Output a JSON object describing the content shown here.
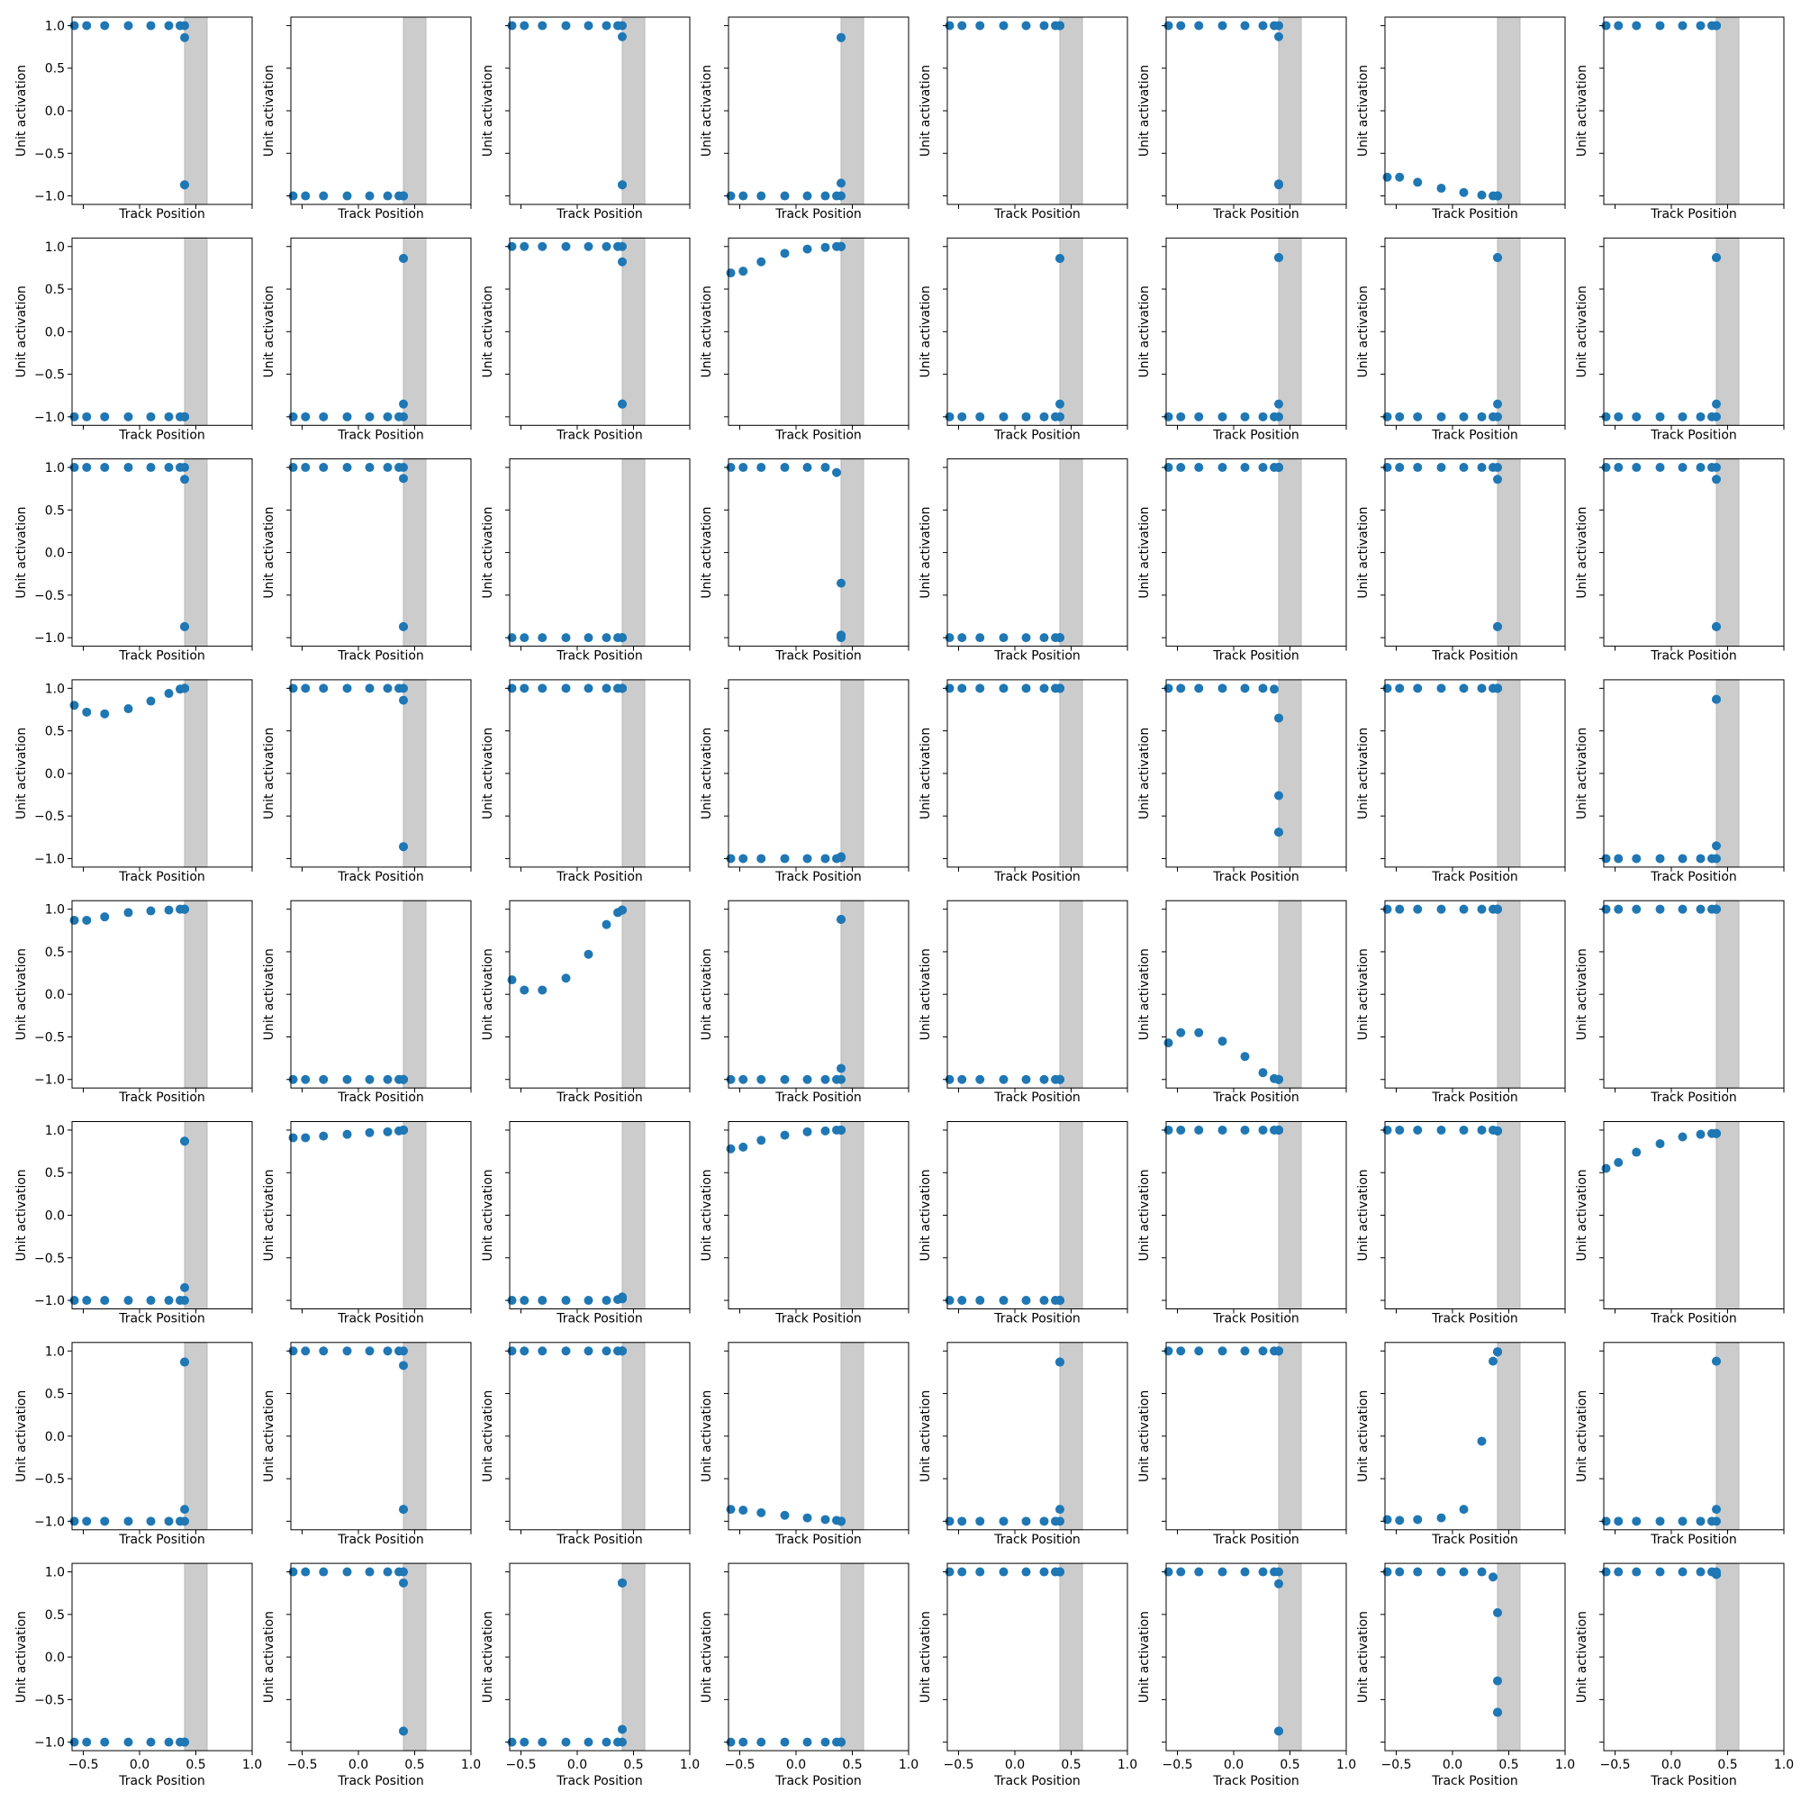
{
  "chart_data": {
    "type": "scatter",
    "title": "",
    "layout": {
      "rows": 8,
      "cols": 8,
      "sharex": true,
      "sharey": true
    },
    "xlabel": "Track Position",
    "ylabel": "Unit activation",
    "xlim": [
      -0.6,
      1.0
    ],
    "ylim": [
      -1.1,
      1.1
    ],
    "x_ticks": [
      -0.5,
      0.0,
      0.5,
      1.0
    ],
    "x_tick_labels": [
      "−0.5",
      "0.0",
      "0.5",
      "1.0"
    ],
    "y_ticks": [
      -1.0,
      -0.5,
      0.0,
      0.5,
      1.0
    ],
    "y_tick_labels": [
      "−1.0",
      "−0.5",
      "0.0",
      "0.5",
      "1.0"
    ],
    "shaded_region": {
      "x_range": [
        0.4,
        0.6
      ],
      "color": "#cccccc"
    },
    "marker_color": "#1f77b4",
    "grid": false,
    "x": [
      -0.58,
      -0.47,
      -0.31,
      -0.1,
      0.1,
      0.26,
      0.36,
      0.4,
      0.4,
      0.4,
      0.4
    ],
    "panels": [
      [
        1,
        1,
        1,
        1,
        1,
        1,
        1,
        1,
        0.86,
        -0.87,
        -0.87
      ],
      [
        -1,
        -1,
        -1,
        -1,
        -1,
        -1,
        -1,
        -1,
        -1,
        -1,
        -1
      ],
      [
        1,
        1,
        1,
        1,
        1,
        1,
        1,
        1,
        0.87,
        -0.87,
        -0.87
      ],
      [
        -1,
        -1,
        -1,
        -1,
        -1,
        -1,
        -1,
        -0.85,
        0.86,
        -1,
        0.86
      ],
      [
        1,
        1,
        1,
        1,
        1,
        1,
        1,
        1,
        1,
        1,
        1
      ],
      [
        1,
        1,
        1,
        1,
        1,
        1,
        1,
        1,
        0.87,
        -0.86,
        -0.87
      ],
      [
        -0.78,
        -0.78,
        -0.84,
        -0.91,
        -0.96,
        -0.99,
        -1,
        -1,
        -1,
        -1,
        -1
      ],
      [
        1,
        1,
        1,
        1,
        1,
        1,
        1,
        1,
        1,
        1,
        1
      ],
      [
        -1,
        -1,
        -1,
        -1,
        -1,
        -1,
        -1,
        -1,
        -1,
        -1,
        -1
      ],
      [
        -1,
        -1,
        -1,
        -1,
        -1,
        -1,
        -1,
        -0.85,
        0.86,
        0.86,
        -1
      ],
      [
        1,
        1,
        1,
        1,
        1,
        1,
        1,
        1,
        0.82,
        -0.85,
        -0.85
      ],
      [
        0.69,
        0.71,
        0.82,
        0.92,
        0.97,
        0.99,
        1,
        1,
        1,
        1,
        1
      ],
      [
        -1,
        -1,
        -1,
        -1,
        -1,
        -1,
        -1,
        -0.85,
        0.86,
        0.86,
        -1
      ],
      [
        -1,
        -1,
        -1,
        -1,
        -1,
        -1,
        -1,
        -0.85,
        0.87,
        0.87,
        -1
      ],
      [
        -1,
        -1,
        -1,
        -1,
        -1,
        -1,
        -1,
        -0.85,
        0.87,
        0.87,
        -1
      ],
      [
        -1,
        -1,
        -1,
        -1,
        -1,
        -1,
        -1,
        -0.85,
        0.87,
        0.87,
        -1
      ],
      [
        1,
        1,
        1,
        1,
        1,
        1,
        1,
        1,
        0.86,
        -0.87,
        -0.87
      ],
      [
        1,
        1,
        1,
        1,
        1,
        1,
        1,
        1,
        0.87,
        -0.87,
        -0.87
      ],
      [
        -1,
        -1,
        -1,
        -1,
        -1,
        -1,
        -1,
        -1,
        -1,
        -1,
        -1
      ],
      [
        1,
        1,
        1,
        1,
        1,
        1,
        0.94,
        -0.36,
        -0.97,
        -0.99,
        -1
      ],
      [
        -1,
        -1,
        -1,
        -1,
        -1,
        -1,
        -1,
        -1,
        -1,
        -1,
        -1
      ],
      [
        1,
        1,
        1,
        1,
        1,
        1,
        1,
        1,
        1,
        1,
        1
      ],
      [
        1,
        1,
        1,
        1,
        1,
        1,
        1,
        1,
        0.86,
        -0.87,
        -0.87
      ],
      [
        1,
        1,
        1,
        1,
        1,
        1,
        1,
        1,
        0.86,
        -0.87,
        -0.87
      ],
      [
        0.8,
        0.72,
        0.7,
        0.76,
        0.85,
        0.94,
        0.99,
        1,
        1,
        1,
        1
      ],
      [
        1,
        1,
        1,
        1,
        1,
        1,
        1,
        1,
        0.86,
        -0.86,
        -0.86
      ],
      [
        1,
        1,
        1,
        1,
        1,
        1,
        1,
        1,
        1,
        1,
        1
      ],
      [
        -1,
        -1,
        -1,
        -1,
        -1,
        -1,
        -1,
        -0.99,
        -0.98,
        -0.98,
        -0.98
      ],
      [
        1,
        1,
        1,
        1,
        1,
        1,
        1,
        1,
        1,
        1,
        1
      ],
      [
        1,
        1,
        1,
        1,
        1,
        1,
        0.99,
        0.65,
        -0.26,
        -0.69,
        -0.69
      ],
      [
        1,
        1,
        1,
        1,
        1,
        1,
        1,
        1,
        1,
        1,
        1
      ],
      [
        -1,
        -1,
        -1,
        -1,
        -1,
        -1,
        -1,
        -0.85,
        0.87,
        0.87,
        -1
      ],
      [
        0.87,
        0.87,
        0.91,
        0.96,
        0.98,
        0.99,
        1,
        1,
        1,
        1,
        1
      ],
      [
        -1,
        -1,
        -1,
        -1,
        -1,
        -1,
        -1,
        -1,
        -1,
        -1,
        -1
      ],
      [
        0.17,
        0.05,
        0.05,
        0.19,
        0.47,
        0.82,
        0.96,
        0.99,
        0.99,
        0.99,
        0.99
      ],
      [
        -1,
        -1,
        -1,
        -1,
        -1,
        -1,
        -1,
        -0.87,
        0.88,
        0.88,
        -1
      ],
      [
        -1,
        -1,
        -1,
        -1,
        -1,
        -1,
        -1,
        -1,
        -1,
        -1,
        -1
      ],
      [
        -0.57,
        -0.45,
        -0.45,
        -0.55,
        -0.73,
        -0.92,
        -0.99,
        -1,
        -1,
        -1,
        -1
      ],
      [
        1,
        1,
        1,
        1,
        1,
        1,
        1,
        1,
        1,
        1,
        1
      ],
      [
        1,
        1,
        1,
        1,
        1,
        1,
        1,
        1,
        1,
        1,
        1
      ],
      [
        -1,
        -1,
        -1,
        -1,
        -1,
        -1,
        -1,
        -0.85,
        0.87,
        0.87,
        -1
      ],
      [
        0.91,
        0.91,
        0.93,
        0.95,
        0.97,
        0.98,
        0.99,
        1,
        1,
        1,
        1
      ],
      [
        -1,
        -1,
        -1,
        -1,
        -1,
        -1,
        -0.99,
        -0.98,
        -0.96,
        -0.98,
        -0.98
      ],
      [
        0.78,
        0.8,
        0.88,
        0.94,
        0.98,
        0.99,
        1,
        1,
        1,
        1,
        1
      ],
      [
        -1,
        -1,
        -1,
        -1,
        -1,
        -1,
        -1,
        -1,
        -1,
        -1,
        -1
      ],
      [
        1,
        1,
        1,
        1,
        1,
        1,
        1,
        1,
        1,
        1,
        1
      ],
      [
        1,
        1,
        1,
        1,
        1,
        1,
        1,
        0.99,
        0.99,
        0.99,
        0.99
      ],
      [
        0.55,
        0.62,
        0.74,
        0.84,
        0.92,
        0.95,
        0.96,
        0.96,
        0.96,
        0.96,
        0.96
      ],
      [
        -1,
        -1,
        -1,
        -1,
        -1,
        -1,
        -1,
        -0.86,
        0.87,
        0.87,
        -1
      ],
      [
        1,
        1,
        1,
        1,
        1,
        1,
        1,
        1,
        0.83,
        -0.86,
        -0.86
      ],
      [
        1,
        1,
        1,
        1,
        1,
        1,
        1,
        1,
        1,
        1,
        1
      ],
      [
        -0.86,
        -0.87,
        -0.9,
        -0.93,
        -0.96,
        -0.98,
        -0.99,
        -1,
        -1,
        -1,
        -1
      ],
      [
        -1,
        -1,
        -1,
        -1,
        -1,
        -1,
        -1,
        -0.86,
        0.87,
        0.87,
        -1
      ],
      [
        1,
        1,
        1,
        1,
        1,
        1,
        1,
        1,
        1,
        1,
        1
      ],
      [
        -0.98,
        -0.99,
        -0.98,
        -0.96,
        -0.86,
        -0.06,
        0.88,
        0.99,
        0.99,
        0.99,
        0.99
      ],
      [
        -1,
        -1,
        -1,
        -1,
        -1,
        -1,
        -1,
        -0.86,
        0.88,
        0.88,
        -1
      ],
      [
        -1,
        -1,
        -1,
        -1,
        -1,
        -1,
        -1,
        -1,
        -1,
        -1,
        -1
      ],
      [
        1,
        1,
        1,
        1,
        1,
        1,
        1,
        1,
        0.87,
        -0.87,
        -0.87
      ],
      [
        -1,
        -1,
        -1,
        -1,
        -1,
        -1,
        -1,
        -0.85,
        0.87,
        0.87,
        -1
      ],
      [
        -1,
        -1,
        -1,
        -1,
        -1,
        -1,
        -1,
        -1,
        -1,
        -1,
        -1
      ],
      [
        1,
        1,
        1,
        1,
        1,
        1,
        1,
        1,
        1,
        1,
        1
      ],
      [
        1,
        1,
        1,
        1,
        1,
        1,
        1,
        1,
        0.86,
        -0.87,
        -0.87
      ],
      [
        1,
        1,
        1,
        1,
        1,
        1,
        0.94,
        0.52,
        -0.28,
        -0.65,
        -0.65
      ],
      [
        1,
        1,
        1,
        1,
        1,
        1,
        1,
        1,
        0.97,
        0.97,
        0.97
      ]
    ]
  }
}
